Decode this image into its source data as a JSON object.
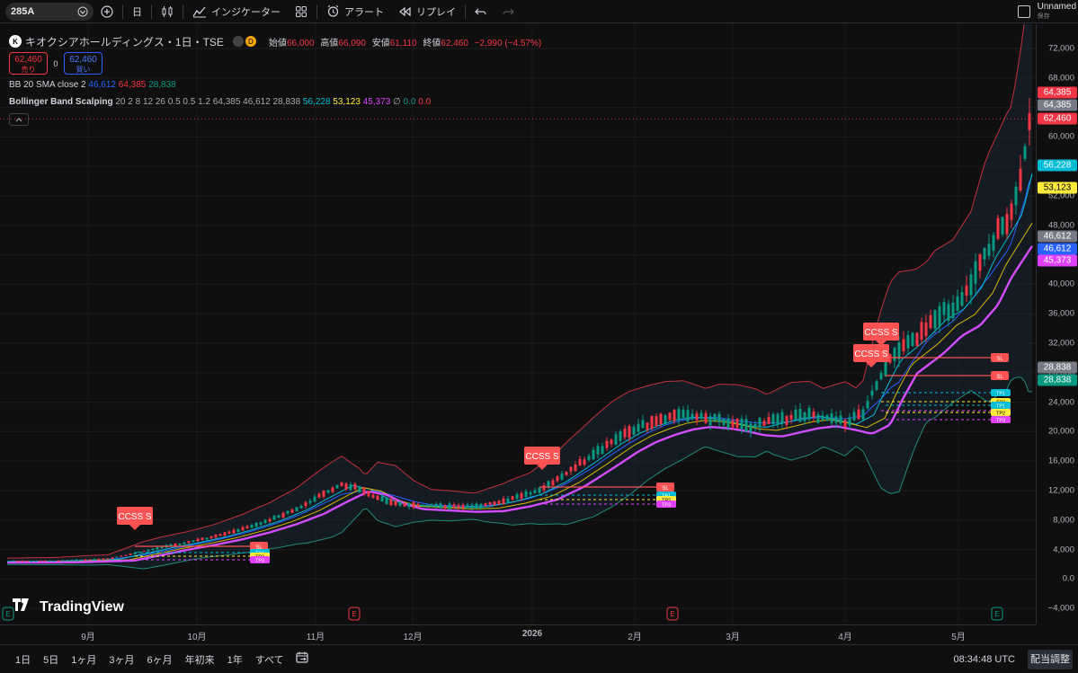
{
  "toolbar": {
    "symbol": "285A",
    "interval": "日",
    "indicators_label": "インジケーター",
    "alert_label": "アラート",
    "replay_label": "リプレイ",
    "layout_name": "Unnamed",
    "layout_sub": "保存"
  },
  "legend": {
    "logo": "K",
    "title": "キオクシアホールディングス・1日・TSE",
    "badge_d": "D",
    "open_label": "始値",
    "open": "66,000",
    "high_label": "高値",
    "high": "66,090",
    "low_label": "安値",
    "low": "61,110",
    "close_label": "終値",
    "close": "62,460",
    "change": "−2,990 (−4.57%)",
    "sell_price": "62,460",
    "sell_label": "売り",
    "spread": "0",
    "buy_price": "62,460",
    "buy_label": "買い",
    "bb_name": "BB 20 SMA close 2",
    "bb_v1": "46,612",
    "bb_v2": "64,385",
    "bb_v3": "28,838",
    "bbs_name": "Bollinger Band Scalping",
    "bbs_params": "20 2 8 12 26 0.5 0.5 1.2",
    "bbs_v1": "64,385",
    "bbs_v2": "46,612",
    "bbs_v3": "28,838",
    "bbs_v4": "56,228",
    "bbs_v5": "53,123",
    "bbs_v6": "45,373",
    "bbs_null": "∅",
    "bbs_v7": "0.0",
    "bbs_v8": "0.0"
  },
  "price_axis": {
    "ticks": [
      "72,000",
      "68,000",
      "64,000",
      "60,000",
      "56,000",
      "52,000",
      "48,000",
      "44,000",
      "40,000",
      "36,000",
      "32,000",
      "28,000",
      "24,000",
      "20,000",
      "16,000",
      "12,000",
      "8,000",
      "4,000",
      "0.0",
      "−4,000"
    ],
    "labels": [
      {
        "text": "64,385",
        "color": "#f23645"
      },
      {
        "text": "64,385",
        "color": "#787b86"
      },
      {
        "text": "62,460",
        "color": "#f23645"
      },
      {
        "text": "56,228",
        "color": "#00bcd4"
      },
      {
        "text": "53,123",
        "color": "#ffeb3b"
      },
      {
        "text": "46,612",
        "color": "#787b86"
      },
      {
        "text": "46,612",
        "color": "#2962ff"
      },
      {
        "text": "45,373",
        "color": "#e040fb"
      },
      {
        "text": "28,838",
        "color": "#787b86"
      },
      {
        "text": "28,838",
        "color": "#089981"
      }
    ]
  },
  "time_axis": [
    "9月",
    "10月",
    "11月",
    "12月",
    "2026",
    "2月",
    "3月",
    "4月",
    "5月"
  ],
  "chart": {
    "watermark": "TradingView",
    "signal_label": "CCSS S",
    "tags": [
      "SL",
      "TP1",
      "TP2",
      "TP3"
    ],
    "event_marker": "E"
  },
  "bottom": {
    "ranges": [
      "1日",
      "5日",
      "1ヶ月",
      "3ヶ月",
      "6ヶ月",
      "年初来",
      "1年",
      "すべて"
    ],
    "clock": "08:34:48 UTC",
    "adjust": "配当調整"
  }
}
